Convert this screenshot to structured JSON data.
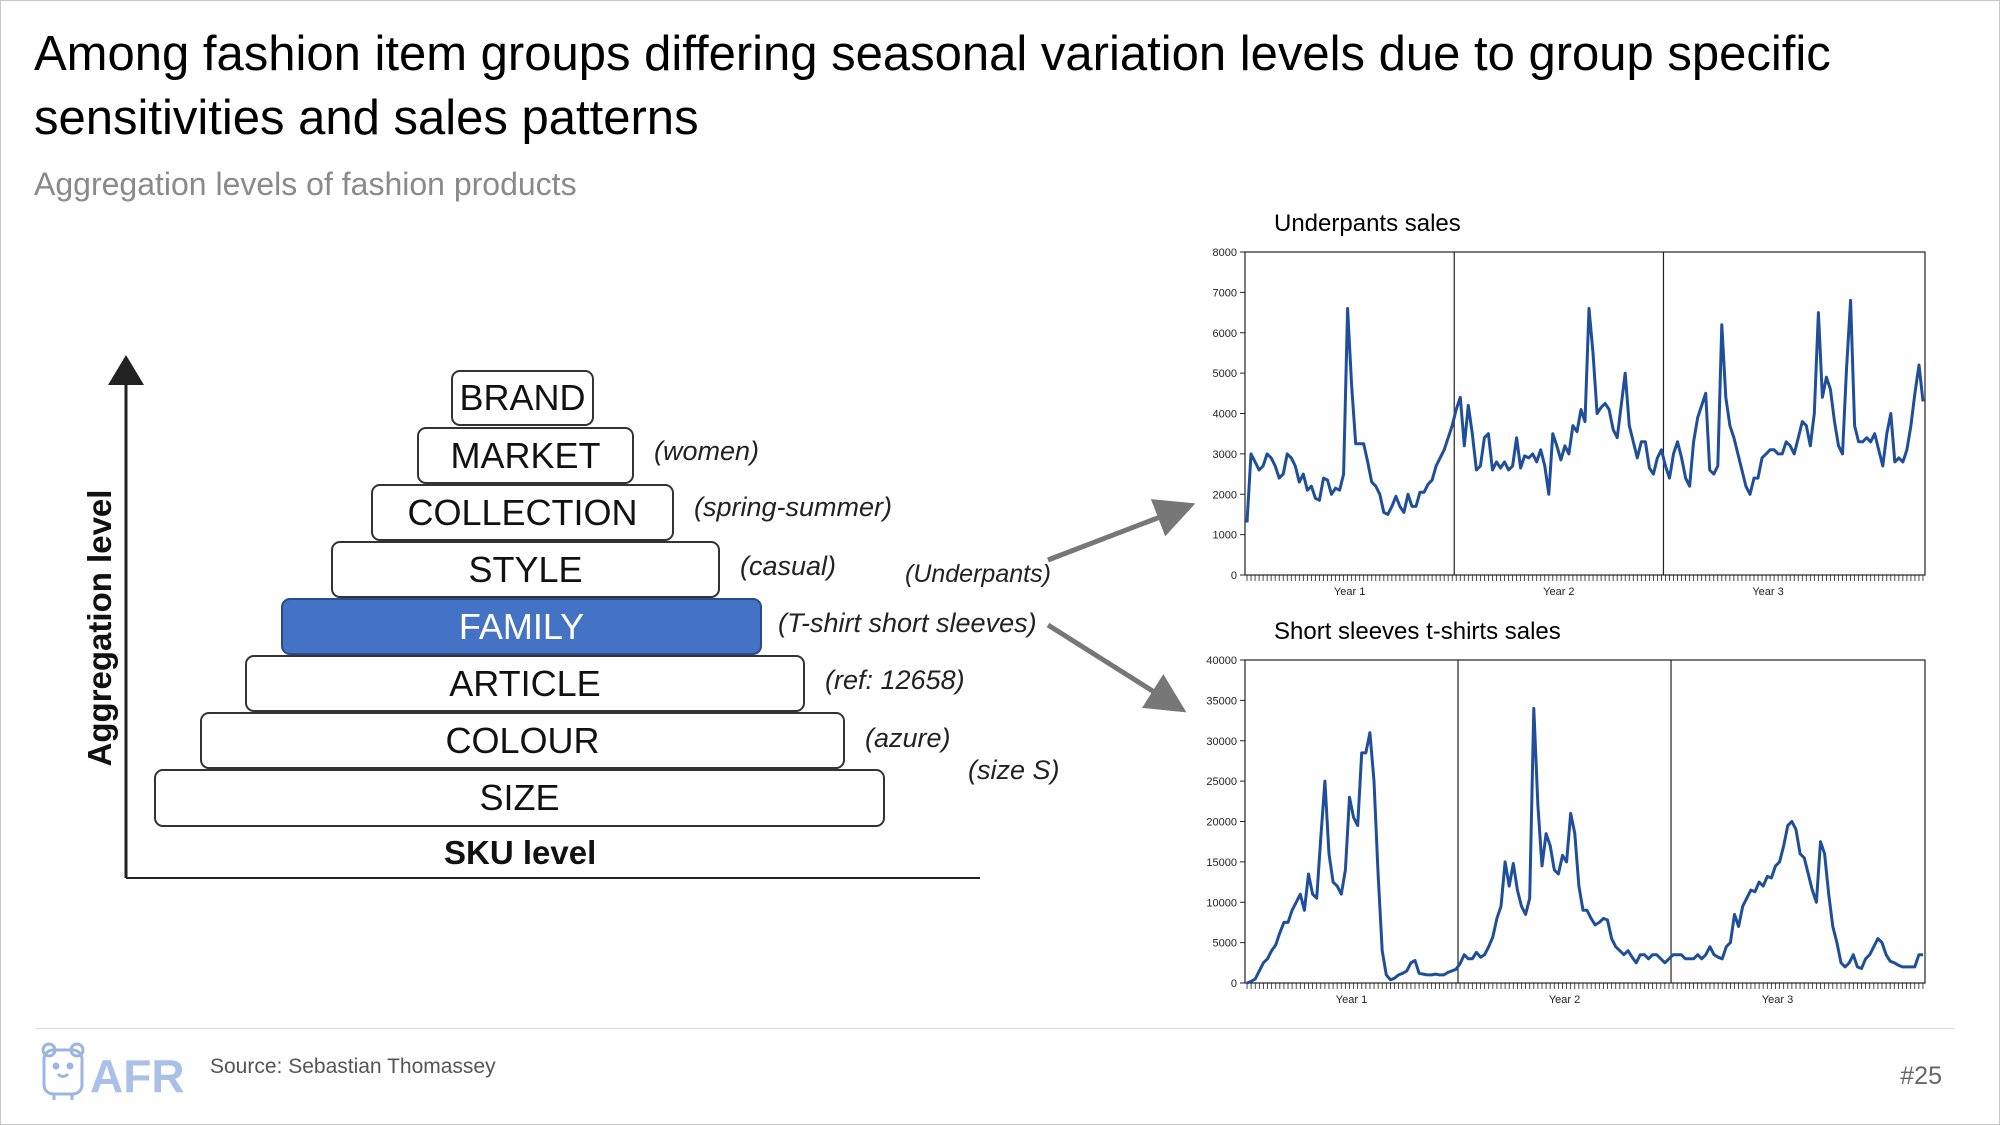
{
  "slide": {
    "title": "Among fashion item groups differing seasonal variation levels due to group specific sensitivities and sales patterns",
    "subtitle": "Aggregation levels of fashion products",
    "source": "Source: Sebastian Thomassey",
    "slide_number": "#25",
    "logo_text": "AFR"
  },
  "colors": {
    "highlight": "#4472c4",
    "line": "#1f4e9a",
    "arrow": "#777777"
  },
  "pyramid": {
    "y_axis_label": "Aggregation level",
    "x_axis_label": "SKU level",
    "levels": [
      {
        "label": "BRAND",
        "example": ""
      },
      {
        "label": "MARKET",
        "example": "(women)"
      },
      {
        "label": "COLLECTION",
        "example": "(spring-summer)"
      },
      {
        "label": "STYLE",
        "example": "(casual)"
      },
      {
        "label": "FAMILY",
        "example": "(T-shirt short sleeves)",
        "highlight": true
      },
      {
        "label": "ARTICLE",
        "example": "(ref: 12658)"
      },
      {
        "label": "COLOUR",
        "example": "(azure)"
      },
      {
        "label": "SIZE",
        "example": "(size S)"
      }
    ],
    "underpants_note": "(Underpants)"
  },
  "chart_data": [
    {
      "type": "line",
      "title": "Underpants sales",
      "ylim": [
        0,
        8000
      ],
      "yticks": [
        0,
        1000,
        2000,
        3000,
        4000,
        5000,
        6000,
        7000,
        8000
      ],
      "year_labels": [
        "Year 1",
        "Year 2",
        "Year 3"
      ],
      "points_per_year": 52,
      "series": [
        {
          "values": [
            1300,
            3000,
            2800,
            2600,
            2700,
            3000,
            2900,
            2700,
            2400,
            2500,
            3000,
            2900,
            2700,
            2300,
            2500,
            2100,
            2200,
            1900,
            1850,
            2400,
            2350,
            2000,
            2150,
            2100,
            2500,
            6600,
            4700,
            3250,
            3250,
            3250,
            2800,
            2300,
            2200,
            2000,
            1550,
            1500,
            1700,
            1950,
            1700,
            1550,
            2000,
            1700,
            1700,
            2050,
            2050,
            2250,
            2350,
            2700,
            2900,
            3100,
            3400,
            3700,
            4100,
            4400,
            3200,
            4200,
            3500,
            2600,
            2700,
            3400,
            3500,
            2600,
            2800,
            2650,
            2800,
            2600,
            2700,
            3400,
            2650,
            2950,
            2900,
            3000,
            2800,
            3100,
            2700,
            2000,
            3500,
            3200,
            2850,
            3200,
            3000,
            3700,
            3550,
            4100,
            3800,
            6600,
            5500,
            4000,
            4150,
            4250,
            4100,
            3600,
            3400,
            4200,
            5000,
            3700,
            3300,
            2900,
            3300,
            3300,
            2650,
            2500,
            2900,
            3100,
            2700,
            2400,
            3000,
            3300,
            2900,
            2400,
            2200,
            3300,
            3900,
            4200,
            4500,
            2600,
            2500,
            2700,
            6200,
            4400,
            3700,
            3400,
            3000,
            2600,
            2200,
            2000,
            2400,
            2400,
            2900,
            3000,
            3100,
            3100,
            3000,
            3000,
            3300,
            3200,
            3000,
            3400,
            3800,
            3700,
            3200,
            4000,
            6500,
            4400,
            4900,
            4600,
            3800,
            3200,
            3000,
            5100,
            6800,
            3700,
            3300,
            3300,
            3400,
            3300,
            3500,
            3100,
            2700,
            3500,
            4000,
            2800,
            2900,
            2800,
            3100,
            3700,
            4500,
            5200,
            4300
          ]
        }
      ]
    },
    {
      "type": "line",
      "title": "Short sleeves t-shirts sales",
      "ylim": [
        0,
        40000
      ],
      "yticks": [
        0,
        5000,
        10000,
        15000,
        20000,
        25000,
        30000,
        35000,
        40000
      ],
      "year_labels": [
        "Year 1",
        "Year 2",
        "Year 3"
      ],
      "points_per_year": 52,
      "series": [
        {
          "values": [
            0,
            200,
            500,
            1500,
            2500,
            3000,
            4000,
            4700,
            6200,
            7500,
            7500,
            9000,
            10000,
            11000,
            9000,
            13500,
            11000,
            10500,
            18000,
            25000,
            16000,
            12500,
            12000,
            11000,
            14000,
            23000,
            20500,
            19500,
            28500,
            28500,
            31000,
            25000,
            13500,
            4000,
            1000,
            400,
            600,
            1000,
            1200,
            1500,
            2500,
            2800,
            1200,
            1100,
            1000,
            1000,
            1100,
            1000,
            1000,
            1300,
            1500,
            1700,
            2400,
            3500,
            3000,
            3000,
            3800,
            3200,
            3500,
            4500,
            5700,
            8000,
            9500,
            15000,
            12000,
            14800,
            11500,
            9500,
            8500,
            10500,
            34000,
            22000,
            14500,
            18500,
            17000,
            14000,
            13500,
            15800,
            15000,
            21000,
            18500,
            12000,
            9000,
            9000,
            8000,
            7200,
            7500,
            8000,
            7800,
            5500,
            4500,
            4000,
            3500,
            4000,
            3200,
            2500,
            3500,
            3500,
            3000,
            3500,
            3500,
            3000,
            2500,
            3000,
            3500,
            3500,
            3500,
            3000,
            3000,
            3000,
            3500,
            3000,
            3500,
            4500,
            3500,
            3200,
            3000,
            4500,
            5000,
            8500,
            7000,
            9500,
            10500,
            11500,
            11300,
            12500,
            12000,
            13200,
            13000,
            14500,
            15000,
            17000,
            19500,
            20000,
            19000,
            16000,
            15500,
            13500,
            11500,
            10000,
            17500,
            16000,
            11000,
            7000,
            5000,
            2500,
            2000,
            2500,
            3500,
            2000,
            1800,
            3000,
            3500,
            4500,
            5500,
            5000,
            3500,
            2700,
            2500,
            2200,
            2000,
            2000,
            2000,
            2000,
            3500,
            3500
          ]
        }
      ]
    }
  ]
}
